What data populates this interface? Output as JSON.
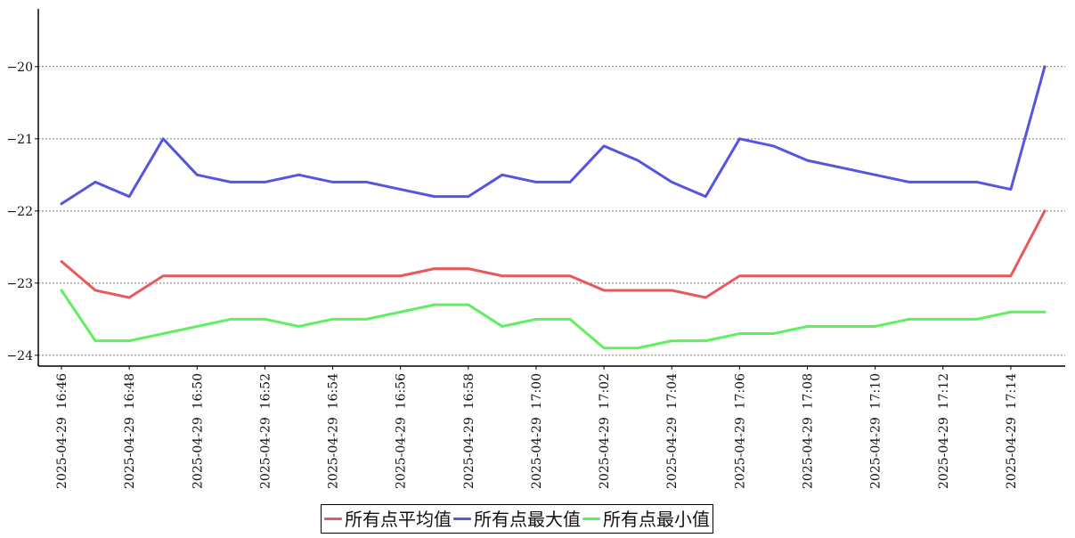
{
  "chart_data": {
    "type": "line",
    "title": "",
    "xlabel": "",
    "ylabel": "",
    "ylim": [
      -24.15,
      -19.2
    ],
    "y_ticks": [
      -20,
      -21,
      -22,
      -23,
      -24
    ],
    "x_tick_labels": [
      "2025-04-29  16:46",
      "2025-04-29  16:48",
      "2025-04-29  16:50",
      "2025-04-29  16:52",
      "2025-04-29  16:54",
      "2025-04-29  16:56",
      "2025-04-29  16:58",
      "2025-04-29  17:00",
      "2025-04-29  17:02",
      "2025-04-29  17:04",
      "2025-04-29  17:06",
      "2025-04-29  17:08",
      "2025-04-29  17:10",
      "2025-04-29  17:12",
      "2025-04-29  17:14"
    ],
    "grid": "horizontal-dotted",
    "legend_placement": "bottom-center",
    "x": [
      "2025-04-29 16:46",
      "2025-04-29 16:47",
      "2025-04-29 16:48",
      "2025-04-29 16:49",
      "2025-04-29 16:50",
      "2025-04-29 16:51",
      "2025-04-29 16:52",
      "2025-04-29 16:53",
      "2025-04-29 16:54",
      "2025-04-29 16:55",
      "2025-04-29 16:56",
      "2025-04-29 16:57",
      "2025-04-29 16:58",
      "2025-04-29 16:59",
      "2025-04-29 17:00",
      "2025-04-29 17:01",
      "2025-04-29 17:02",
      "2025-04-29 17:03",
      "2025-04-29 17:04",
      "2025-04-29 17:05",
      "2025-04-29 17:06",
      "2025-04-29 17:07",
      "2025-04-29 17:08",
      "2025-04-29 17:09",
      "2025-04-29 17:10",
      "2025-04-29 17:11",
      "2025-04-29 17:12",
      "2025-04-29 17:13",
      "2025-04-29 17:14",
      "2025-04-29 17:15"
    ],
    "series": [
      {
        "name": "所有点平均值",
        "color": "#e85a5a",
        "values": [
          -22.7,
          -23.1,
          -23.2,
          -22.9,
          -22.9,
          -22.9,
          -22.9,
          -22.9,
          -22.9,
          -22.9,
          -22.9,
          -22.8,
          -22.8,
          -22.9,
          -22.9,
          -22.9,
          -23.1,
          -23.1,
          -23.1,
          -23.2,
          -22.9,
          -22.9,
          -22.9,
          -22.9,
          -22.9,
          -22.9,
          -22.9,
          -22.9,
          -22.9,
          -22.0
        ]
      },
      {
        "name": "所有点最大值",
        "color": "#5555e0",
        "values": [
          -21.9,
          -21.6,
          -21.8,
          -21.0,
          -21.5,
          -21.6,
          -21.6,
          -21.5,
          -21.6,
          -21.6,
          -21.7,
          -21.8,
          -21.8,
          -21.5,
          -21.6,
          -21.6,
          -21.1,
          -21.3,
          -21.6,
          -21.8,
          -21.0,
          -21.1,
          -21.3,
          -21.4,
          -21.5,
          -21.6,
          -21.6,
          -21.6,
          -21.7,
          -20.0
        ]
      },
      {
        "name": "所有点最小值",
        "color": "#5ef05e",
        "values": [
          -23.1,
          -23.8,
          -23.8,
          -23.7,
          -23.6,
          -23.5,
          -23.5,
          -23.6,
          -23.5,
          -23.5,
          -23.4,
          -23.3,
          -23.3,
          -23.6,
          -23.5,
          -23.5,
          -23.9,
          -23.9,
          -23.8,
          -23.8,
          -23.7,
          -23.7,
          -23.6,
          -23.6,
          -23.6,
          -23.5,
          -23.5,
          -23.5,
          -23.4,
          -23.4
        ]
      }
    ]
  }
}
